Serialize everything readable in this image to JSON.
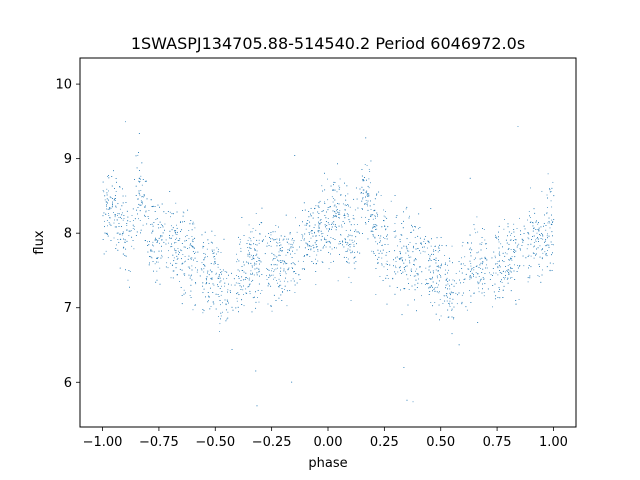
{
  "chart_data": {
    "type": "scatter",
    "title": "1SWASPJ134705.88-514540.2 Period 6046972.0s",
    "xlabel": "phase",
    "ylabel": "flux",
    "xlim": [
      -1.1,
      1.1
    ],
    "ylim": [
      5.4,
      10.35
    ],
    "x_ticks": [
      -1.0,
      -0.75,
      -0.5,
      -0.25,
      0.0,
      0.25,
      0.5,
      0.75,
      1.0
    ],
    "x_tick_labels": [
      "−1.00",
      "−0.75",
      "−0.50",
      "−0.25",
      "0.00",
      "0.25",
      "0.50",
      "0.75",
      "1.00"
    ],
    "y_ticks": [
      6,
      7,
      8,
      9,
      10
    ],
    "y_tick_labels": [
      "6",
      "7",
      "8",
      "9",
      "10"
    ],
    "grid": false,
    "legend": "none",
    "marker_color": "#1f77b4",
    "series": [
      {
        "phase_curve": [
          {
            "phase": 0.0,
            "flux": 8.15
          },
          {
            "phase": 0.04,
            "flux": 8.35
          },
          {
            "phase": 0.08,
            "flux": 8.1
          },
          {
            "phase": 0.12,
            "flux": 7.9
          },
          {
            "phase": 0.16,
            "flux": 8.6
          },
          {
            "phase": 0.2,
            "flux": 8.1
          },
          {
            "phase": 0.25,
            "flux": 7.9
          },
          {
            "phase": 0.3,
            "flux": 7.85
          },
          {
            "phase": 0.35,
            "flux": 7.7
          },
          {
            "phase": 0.4,
            "flux": 7.65
          },
          {
            "phase": 0.45,
            "flux": 7.5
          },
          {
            "phase": 0.5,
            "flux": 7.45
          },
          {
            "phase": 0.55,
            "flux": 7.25
          },
          {
            "phase": 0.6,
            "flux": 7.4
          },
          {
            "phase": 0.65,
            "flux": 7.55
          },
          {
            "phase": 0.7,
            "flux": 7.6
          },
          {
            "phase": 0.75,
            "flux": 7.65
          },
          {
            "phase": 0.8,
            "flux": 7.6
          },
          {
            "phase": 0.85,
            "flux": 7.75
          },
          {
            "phase": 0.9,
            "flux": 7.9
          },
          {
            "phase": 0.95,
            "flux": 8.0
          },
          {
            "phase": 1.0,
            "flux": 8.15
          }
        ]
      }
    ]
  }
}
